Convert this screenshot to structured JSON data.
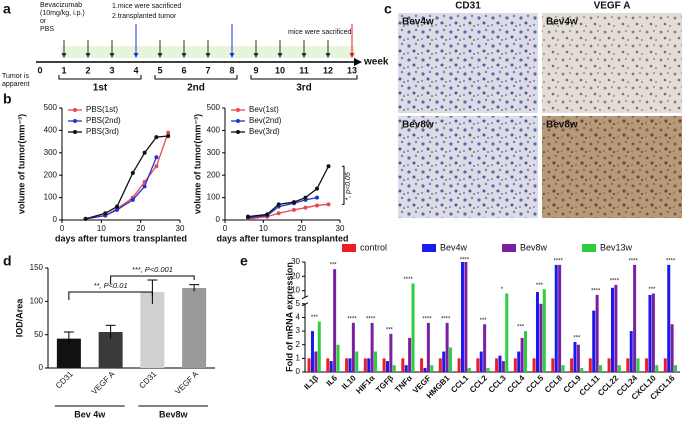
{
  "panel_labels": [
    "a",
    "b",
    "c",
    "d",
    "e"
  ],
  "timeline": {
    "weeks": [
      0,
      1,
      2,
      3,
      4,
      5,
      6,
      7,
      8,
      9,
      10,
      11,
      12,
      13
    ],
    "unit": "week",
    "phases": [
      "1st",
      "2nd",
      "3rd"
    ],
    "start_note": [
      "Tumor is",
      "apparent"
    ],
    "treatment_note": [
      "Bevacizumab",
      "(10mg/kg, i.p.)",
      "or",
      "PBS"
    ],
    "transplant_note": [
      "1.mice were sacrificed",
      "2.transplanted tumor"
    ],
    "end_note": "mice were sacrificed"
  },
  "images": {
    "columns": [
      "CD31",
      "VEGF A"
    ],
    "rows": [
      "Bev4w",
      "Bev8w"
    ]
  },
  "chart_data": [
    {
      "type": "line",
      "x": [
        6,
        11,
        14,
        18,
        21,
        24,
        27
      ],
      "xlim": [
        0,
        30
      ],
      "xticks": [
        0,
        10,
        20,
        30
      ],
      "ylim": [
        0,
        500
      ],
      "yticks": [
        0,
        100,
        200,
        300,
        400,
        500
      ],
      "xlabel": "days after tumors transplanted",
      "ylabel": "volume of tumor(mm⁻³)",
      "legend": "upper-left",
      "series": [
        {
          "name": "PBS(1st)",
          "color": "#e8474f",
          "values": [
            5,
            20,
            50,
            100,
            170,
            240,
            390
          ]
        },
        {
          "name": "PBS(2nd)",
          "color": "#2233cc",
          "values": [
            5,
            20,
            45,
            90,
            150,
            280,
            null
          ]
        },
        {
          "name": "PBS(3rd)",
          "color": "#111111",
          "values": [
            5,
            30,
            60,
            210,
            300,
            370,
            375
          ]
        }
      ]
    },
    {
      "type": "line",
      "x": [
        6,
        11,
        14,
        18,
        21,
        24,
        27
      ],
      "xlim": [
        0,
        30
      ],
      "xticks": [
        0,
        10,
        20,
        30
      ],
      "ylim": [
        0,
        500
      ],
      "yticks": [
        0,
        100,
        200,
        300,
        400,
        500
      ],
      "xlabel": "days after tumors transplanted",
      "ylabel": "volume of tumor(mm⁻³)",
      "legend": "upper-left",
      "annotations": [
        "*, p<0.05"
      ],
      "series": [
        {
          "name": "Bev(1st)",
          "color": "#e8474f",
          "values": [
            5,
            15,
            30,
            45,
            55,
            65,
            70
          ]
        },
        {
          "name": "Bev(2nd)",
          "color": "#2233cc",
          "values": [
            10,
            20,
            60,
            75,
            90,
            100,
            null
          ]
        },
        {
          "name": "Bev(3rd)",
          "color": "#111111",
          "values": [
            15,
            25,
            70,
            80,
            100,
            140,
            240
          ]
        }
      ]
    },
    {
      "type": "bar",
      "categories": [
        "CD31",
        "VEGF A",
        "CD31",
        "VEGF A"
      ],
      "groups": [
        "Bev 4w",
        "Bev8w"
      ],
      "values": [
        44,
        54,
        114,
        120
      ],
      "errors": [
        10,
        10,
        18,
        5
      ],
      "colors": [
        "#111111",
        "#3a3a3a",
        "#d0d0d0",
        "#9a9a9a"
      ],
      "ylim": [
        0,
        150
      ],
      "yticks": [
        0,
        50,
        100,
        150
      ],
      "ylabel": "IOD/Area",
      "annotations": [
        "**,  P<0.01",
        "***, P<0.001"
      ]
    },
    {
      "type": "groupedbar",
      "categories": [
        "IL1β",
        "IL6",
        "IL10",
        "HIF1α",
        "TGFβ",
        "TNFα",
        "VEGF",
        "HMGB1",
        "CCL1",
        "CCL2",
        "CCL3",
        "CCL4",
        "CCL5",
        "CCL8",
        "CCL9",
        "CCL11",
        "CCL22",
        "CCL24",
        "CXCL10",
        "CXCL16"
      ],
      "significance": [
        "***",
        "***",
        "****",
        "****",
        "***",
        "****",
        "****",
        "****",
        "****",
        "***",
        "*",
        "***",
        "***",
        "****",
        "***",
        "****",
        "****",
        "****",
        "***",
        "****"
      ],
      "ylim": [
        0,
        30
      ],
      "axis_break": 5,
      "yticks": [
        0,
        1,
        2,
        3,
        4,
        5,
        10,
        20,
        30
      ],
      "ylabel": "Fold of mRNA expression",
      "legend": "top",
      "series": [
        {
          "name": "control",
          "color": "#ee1c25",
          "values": [
            1,
            1,
            1,
            1,
            1,
            1,
            1,
            1,
            1,
            1,
            1,
            1,
            1,
            1,
            1,
            1,
            1,
            1,
            1,
            1
          ]
        },
        {
          "name": "Bev4w",
          "color": "#1a1aee",
          "values": [
            3,
            0.8,
            1,
            1,
            0.8,
            0.5,
            0.3,
            1.5,
            30,
            1.5,
            1.2,
            1.5,
            9,
            28,
            2.2,
            4.5,
            12,
            3,
            7,
            28
          ]
        },
        {
          "name": "Bev8w",
          "color": "#7a1fa0",
          "values": [
            1.5,
            25,
            3.6,
            3.6,
            2.8,
            2.5,
            3.6,
            3.6,
            30,
            3.5,
            0.8,
            2.5,
            5,
            28,
            2,
            7,
            14,
            28,
            8,
            3.5
          ]
        },
        {
          "name": "Bev13w",
          "color": "#2ecc40",
          "values": [
            3.7,
            2,
            1.5,
            1.5,
            0.5,
            15,
            0.5,
            1.8,
            0.3,
            0.3,
            8,
            3,
            11,
            0.5,
            0.3,
            0.5,
            0.5,
            1,
            0.5,
            0.5
          ]
        }
      ]
    }
  ]
}
